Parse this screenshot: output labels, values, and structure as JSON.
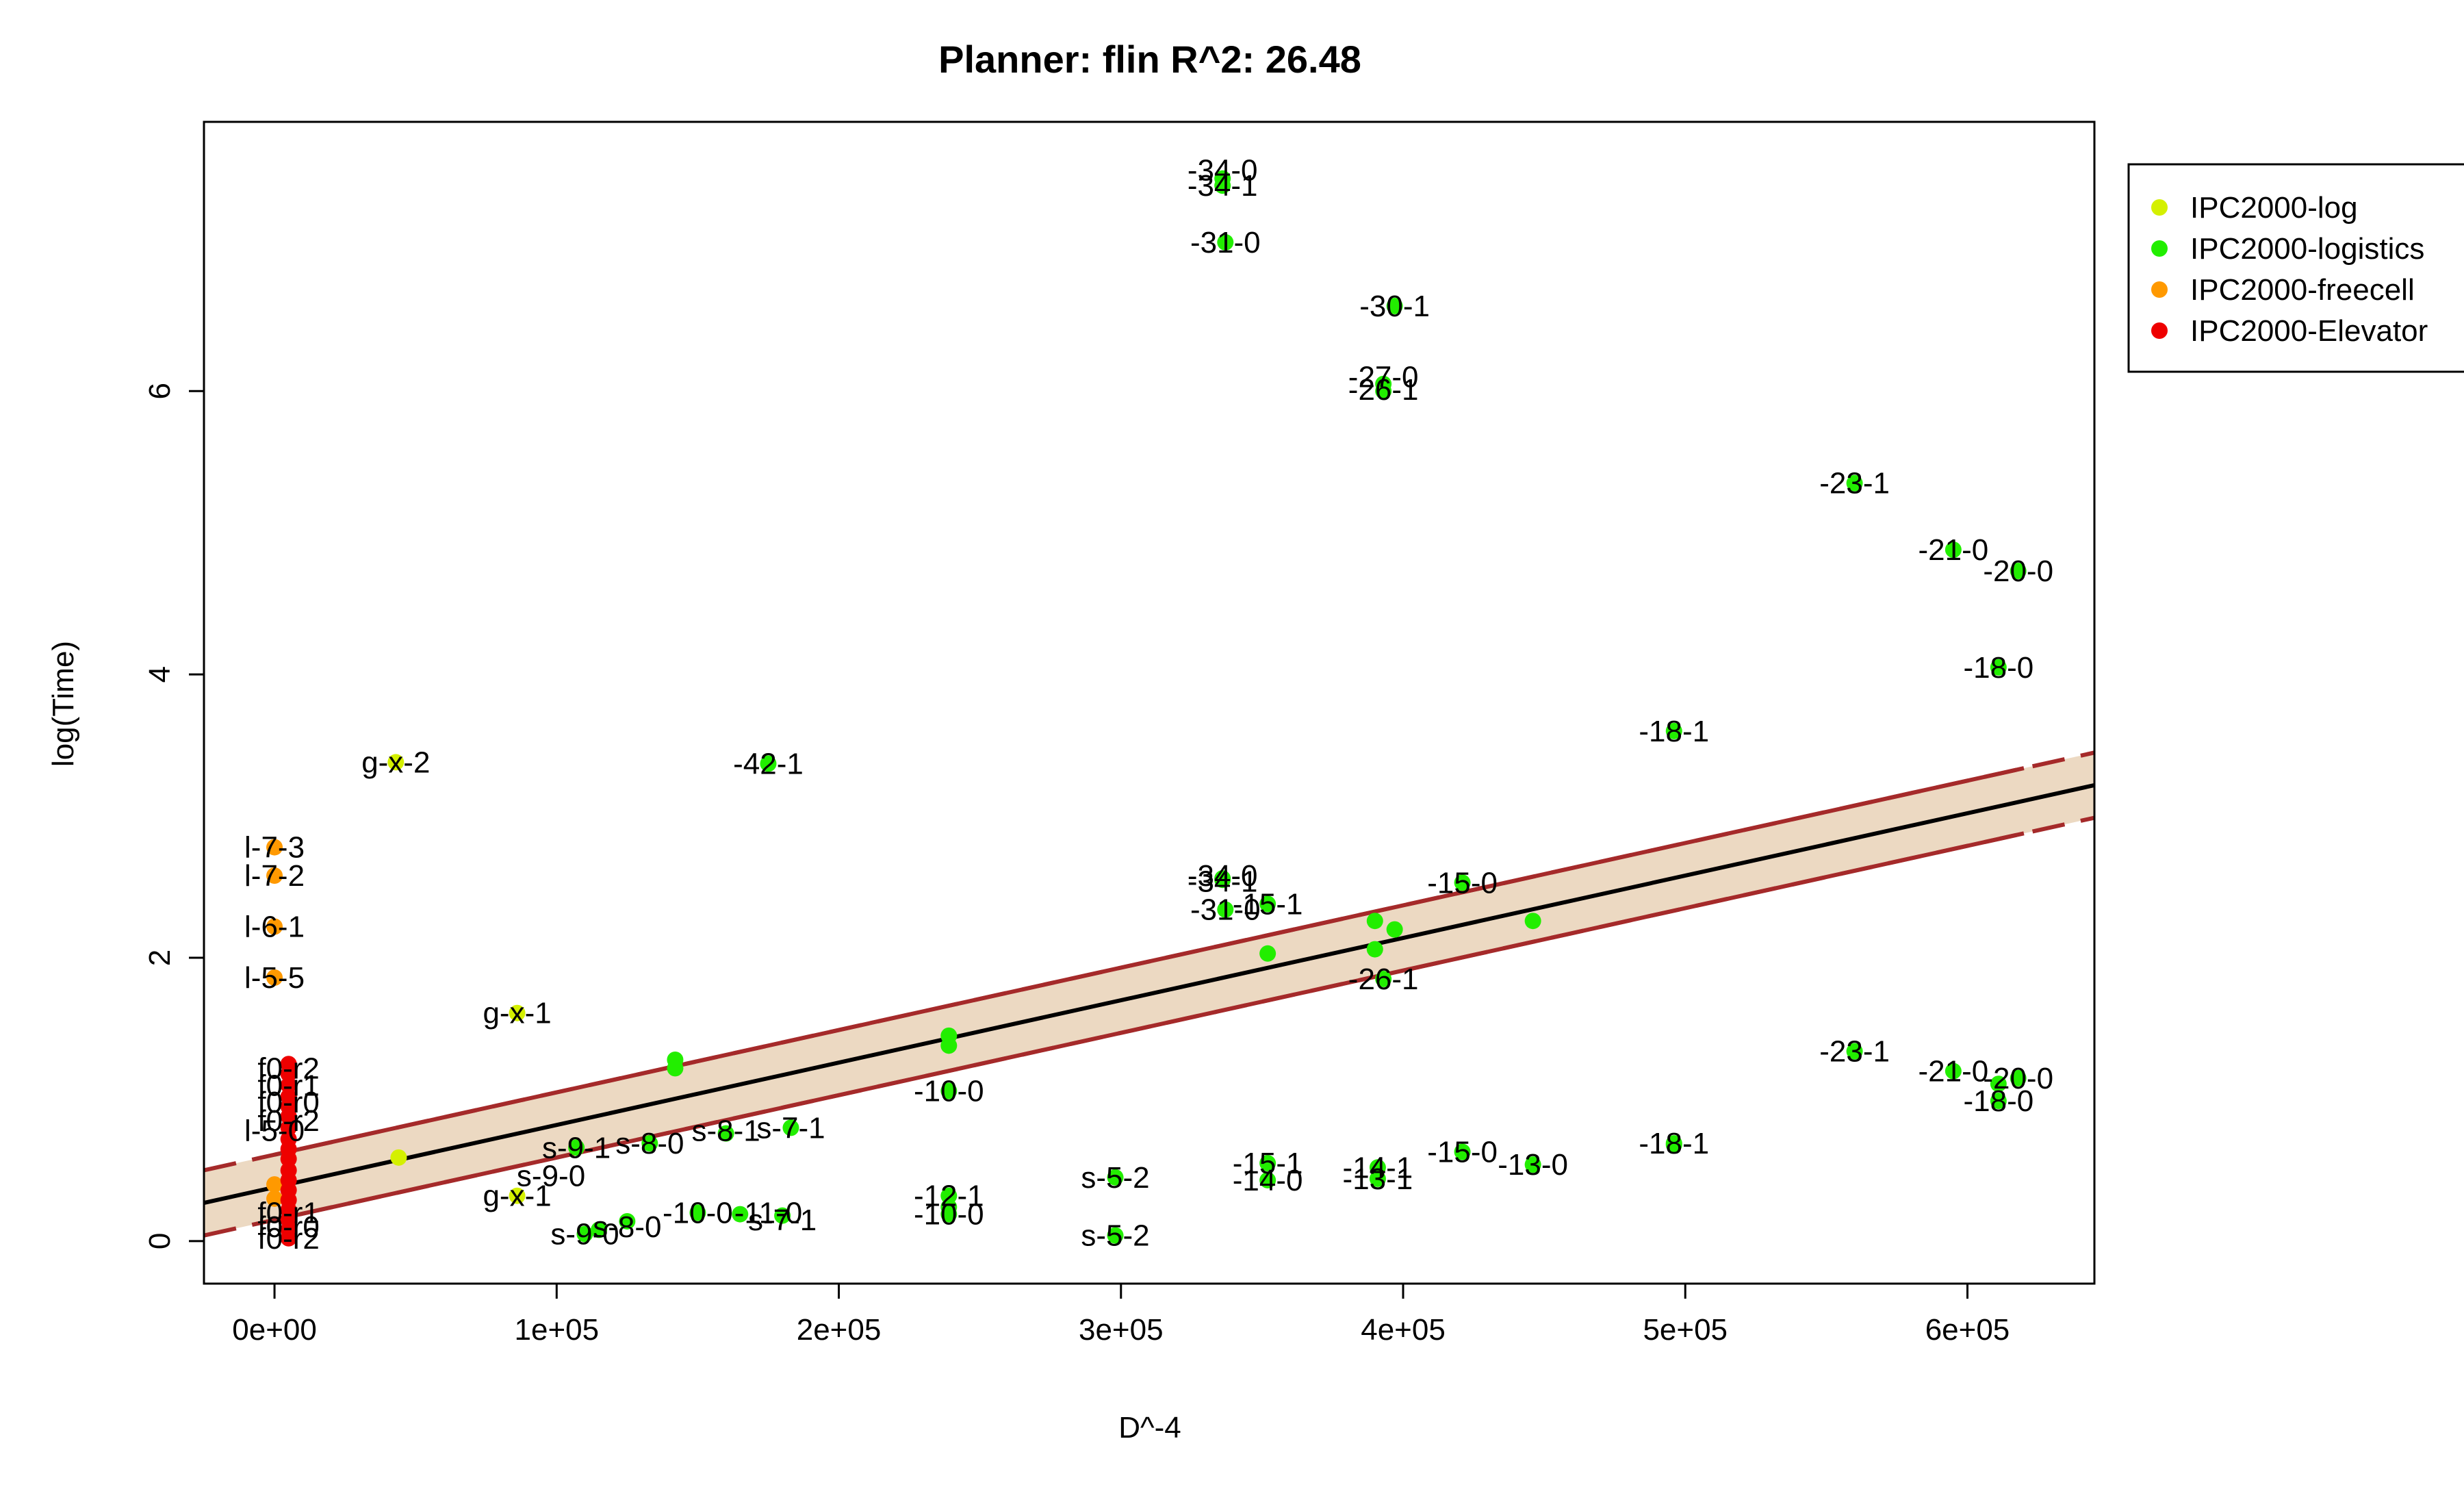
{
  "chart_data": {
    "type": "scatter",
    "title": "Planner: flin R^2: 26.48",
    "xlabel": "D^-4",
    "ylabel": "log(Time)",
    "xlim": [
      -25000,
      645000
    ],
    "ylim": [
      -0.3,
      7.9
    ],
    "x_ticks": [
      0,
      100000,
      200000,
      300000,
      400000,
      500000,
      600000
    ],
    "x_tick_labels": [
      "0e+00",
      "1e+05",
      "2e+05",
      "3e+05",
      "4e+05",
      "5e+05",
      "6e+05"
    ],
    "y_ticks": [
      0,
      2,
      4,
      6
    ],
    "y_tick_labels": [
      "0",
      "2",
      "4",
      "6"
    ],
    "grid": false,
    "legend_position": "right-top",
    "fit_line": {
      "intercept": 0.38,
      "slope": 4.4e-06
    },
    "confidence_band": {
      "half_width": 0.23,
      "solid_until_x": 620000,
      "fill": "#ecd9c2",
      "edge_color": "#a52a2a"
    },
    "series": [
      {
        "name": "IPC2000-log",
        "color": "#d4f000",
        "points": [
          [
            43000,
            3.38
          ],
          [
            86000,
            1.61
          ],
          [
            86000,
            0.32
          ],
          [
            44000,
            0.59
          ]
        ],
        "labels": [
          {
            "x": 43000,
            "y": 3.38,
            "text": "g-x-2"
          },
          {
            "x": 86000,
            "y": 1.61,
            "text": "g-x-1"
          },
          {
            "x": 86000,
            "y": 0.32,
            "text": "g-x-1"
          }
        ]
      },
      {
        "name": "IPC2000-logistics",
        "color": "#22ee00",
        "points": [
          [
            336000,
            7.5
          ],
          [
            336000,
            7.45
          ],
          [
            337000,
            7.05
          ],
          [
            397000,
            6.6
          ],
          [
            393000,
            6.05
          ],
          [
            393000,
            6.0
          ],
          [
            560000,
            5.35
          ],
          [
            595000,
            4.88
          ],
          [
            618000,
            4.73
          ],
          [
            611000,
            4.05
          ],
          [
            496000,
            3.6
          ],
          [
            175000,
            3.37
          ],
          [
            336000,
            2.56
          ],
          [
            336000,
            2.55
          ],
          [
            337000,
            2.34
          ],
          [
            352000,
            2.38
          ],
          [
            421000,
            2.53
          ],
          [
            390000,
            2.26
          ],
          [
            397000,
            2.2
          ],
          [
            446000,
            2.26
          ],
          [
            352000,
            2.03
          ],
          [
            390000,
            2.06
          ],
          [
            393000,
            1.85
          ],
          [
            142000,
            1.28
          ],
          [
            142000,
            1.22
          ],
          [
            239000,
            1.45
          ],
          [
            239000,
            1.38
          ],
          [
            239000,
            1.06
          ],
          [
            560000,
            1.34
          ],
          [
            595000,
            1.2
          ],
          [
            618000,
            1.15
          ],
          [
            611000,
            1.11
          ],
          [
            611000,
            0.99
          ],
          [
            496000,
            0.69
          ],
          [
            496000,
            0.68
          ],
          [
            421000,
            0.63
          ],
          [
            446000,
            0.54
          ],
          [
            352000,
            0.55
          ],
          [
            352000,
            0.43
          ],
          [
            391000,
            0.52
          ],
          [
            391000,
            0.44
          ],
          [
            298000,
            0.45
          ],
          [
            298000,
            0.04
          ],
          [
            239000,
            0.32
          ],
          [
            239000,
            0.24
          ],
          [
            239000,
            0.19
          ],
          [
            160000,
            0.76
          ],
          [
            183000,
            0.8
          ],
          [
            133000,
            0.69
          ],
          [
            107000,
            0.66
          ],
          [
            150000,
            0.2
          ],
          [
            165000,
            0.19
          ],
          [
            180000,
            0.18
          ],
          [
            125000,
            0.14
          ],
          [
            110000,
            0.05
          ],
          [
            115000,
            0.08
          ]
        ],
        "labels": [
          {
            "x": 336000,
            "y": 7.56,
            "text": "-34-0"
          },
          {
            "x": 336000,
            "y": 7.45,
            "text": "-34-1"
          },
          {
            "x": 337000,
            "y": 7.05,
            "text": "-31-0"
          },
          {
            "x": 397000,
            "y": 6.6,
            "text": "-30-1"
          },
          {
            "x": 393000,
            "y": 6.1,
            "text": "-27-0"
          },
          {
            "x": 393000,
            "y": 6.01,
            "text": "-26-1"
          },
          {
            "x": 560000,
            "y": 5.35,
            "text": "-23-1"
          },
          {
            "x": 595000,
            "y": 4.88,
            "text": "-21-0"
          },
          {
            "x": 618000,
            "y": 4.73,
            "text": "-20-0"
          },
          {
            "x": 611000,
            "y": 4.05,
            "text": "-18-0"
          },
          {
            "x": 496000,
            "y": 3.6,
            "text": "-18-1"
          },
          {
            "x": 175000,
            "y": 3.37,
            "text": "-42-1"
          },
          {
            "x": 336000,
            "y": 2.58,
            "text": "-34-0"
          },
          {
            "x": 336000,
            "y": 2.54,
            "text": "-34-1"
          },
          {
            "x": 337000,
            "y": 2.34,
            "text": "-31-0"
          },
          {
            "x": 352000,
            "y": 2.38,
            "text": "-15-1"
          },
          {
            "x": 421000,
            "y": 2.53,
            "text": "-15-0"
          },
          {
            "x": 393000,
            "y": 1.85,
            "text": "-26-1"
          },
          {
            "x": 239000,
            "y": 1.06,
            "text": "-10-0"
          },
          {
            "x": 560000,
            "y": 1.34,
            "text": "-23-1"
          },
          {
            "x": 595000,
            "y": 1.2,
            "text": "-21-0"
          },
          {
            "x": 618000,
            "y": 1.15,
            "text": "-20-0"
          },
          {
            "x": 611000,
            "y": 0.99,
            "text": "-18-0"
          },
          {
            "x": 496000,
            "y": 0.69,
            "text": "-18-1"
          },
          {
            "x": 421000,
            "y": 0.63,
            "text": "-15-0"
          },
          {
            "x": 446000,
            "y": 0.54,
            "text": "-13-0"
          },
          {
            "x": 352000,
            "y": 0.55,
            "text": "-15-1"
          },
          {
            "x": 352000,
            "y": 0.43,
            "text": "-14-0"
          },
          {
            "x": 391000,
            "y": 0.52,
            "text": "-14-1"
          },
          {
            "x": 391000,
            "y": 0.44,
            "text": "-13-1"
          },
          {
            "x": 298000,
            "y": 0.45,
            "text": "s-5-2"
          },
          {
            "x": 298000,
            "y": 0.04,
            "text": "s-5-2"
          },
          {
            "x": 239000,
            "y": 0.32,
            "text": "-12-1"
          },
          {
            "x": 239000,
            "y": 0.19,
            "text": "-10-0"
          },
          {
            "x": 160000,
            "y": 0.78,
            "text": "s-8-1"
          },
          {
            "x": 183000,
            "y": 0.8,
            "text": "s-7-1"
          },
          {
            "x": 107000,
            "y": 0.66,
            "text": "s-9-1"
          },
          {
            "x": 133000,
            "y": 0.69,
            "text": "s-8-0"
          },
          {
            "x": 98000,
            "y": 0.46,
            "text": "s-9-0"
          },
          {
            "x": 150000,
            "y": 0.2,
            "text": "-10-0"
          },
          {
            "x": 175000,
            "y": 0.2,
            "text": "-11-0"
          },
          {
            "x": 180000,
            "y": 0.15,
            "text": "s-7-1"
          },
          {
            "x": 110000,
            "y": 0.05,
            "text": "s-9-0"
          },
          {
            "x": 125000,
            "y": 0.1,
            "text": "s-8-0"
          }
        ]
      },
      {
        "name": "IPC2000-freecell",
        "color": "#ff9900",
        "points": [
          [
            0,
            2.78
          ],
          [
            0,
            2.58
          ],
          [
            0,
            2.22
          ],
          [
            0,
            1.86
          ],
          [
            0,
            0.4
          ],
          [
            0,
            0.3
          ]
        ],
        "labels": [
          {
            "x": 0,
            "y": 2.78,
            "text": "l-7-3"
          },
          {
            "x": 0,
            "y": 2.58,
            "text": "l-7-2"
          },
          {
            "x": 0,
            "y": 2.22,
            "text": "l-6-1"
          },
          {
            "x": 0,
            "y": 1.86,
            "text": "l-5-5"
          },
          {
            "x": 0,
            "y": 0.78,
            "text": "l-5-0"
          }
        ]
      },
      {
        "name": "IPC2000-Elevator",
        "color": "#ee0000",
        "points": [
          [
            5000,
            1.25
          ],
          [
            5000,
            1.18
          ],
          [
            5000,
            1.1
          ],
          [
            5000,
            1.02
          ],
          [
            5000,
            0.95
          ],
          [
            5000,
            0.88
          ],
          [
            5000,
            0.8
          ],
          [
            5000,
            0.72
          ],
          [
            5000,
            0.65
          ],
          [
            5000,
            0.58
          ],
          [
            5000,
            0.5
          ],
          [
            5000,
            0.43
          ],
          [
            5000,
            0.36
          ],
          [
            5000,
            0.29
          ],
          [
            5000,
            0.22
          ],
          [
            5000,
            0.15
          ],
          [
            5000,
            0.08
          ],
          [
            5000,
            0.02
          ]
        ],
        "labels": [
          {
            "x": 5000,
            "y": 1.22,
            "text": "f0-r2"
          },
          {
            "x": 5000,
            "y": 1.1,
            "text": "f0-r1"
          },
          {
            "x": 5000,
            "y": 0.98,
            "text": "f0-r0"
          },
          {
            "x": 5000,
            "y": 0.85,
            "text": "f0-r2"
          },
          {
            "x": 5000,
            "y": 0.2,
            "text": "f0-r1"
          },
          {
            "x": 5000,
            "y": 0.1,
            "text": "f0-r0"
          },
          {
            "x": 5000,
            "y": 0.02,
            "text": "f0-r2"
          }
        ]
      }
    ]
  }
}
